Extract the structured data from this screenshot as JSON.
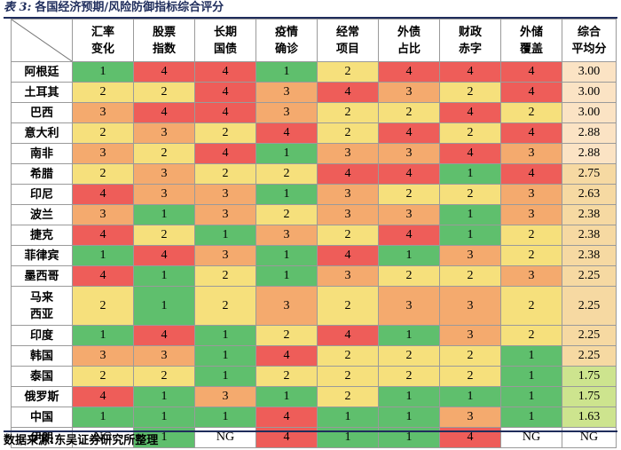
{
  "title": {
    "lead": "表 3:",
    "text": "各国经济预期/风险防御指标综合评分"
  },
  "headers": [
    [
      "汇率",
      "变化"
    ],
    [
      "股票",
      "指数"
    ],
    [
      "长期",
      "国债"
    ],
    [
      "疫情",
      "确诊"
    ],
    [
      "经常",
      "项目"
    ],
    [
      "外债",
      "占比"
    ],
    [
      "财政",
      "赤字"
    ],
    [
      "外储",
      "覆盖"
    ],
    [
      "综合",
      "平均分"
    ]
  ],
  "rows": [
    {
      "country": [
        "阿根廷"
      ],
      "values": [
        "1",
        "4",
        "4",
        "1",
        "2",
        "4",
        "4",
        "4"
      ],
      "avg": "3.00"
    },
    {
      "country": [
        "土耳其"
      ],
      "values": [
        "2",
        "2",
        "4",
        "3",
        "4",
        "3",
        "2",
        "4"
      ],
      "avg": "3.00"
    },
    {
      "country": [
        "巴西"
      ],
      "values": [
        "3",
        "4",
        "4",
        "3",
        "2",
        "2",
        "4",
        "2"
      ],
      "avg": "3.00"
    },
    {
      "country": [
        "意大利"
      ],
      "values": [
        "2",
        "3",
        "2",
        "4",
        "2",
        "4",
        "2",
        "4"
      ],
      "avg": "2.88"
    },
    {
      "country": [
        "南非"
      ],
      "values": [
        "3",
        "2",
        "4",
        "1",
        "3",
        "3",
        "4",
        "3"
      ],
      "avg": "2.88"
    },
    {
      "country": [
        "希腊"
      ],
      "values": [
        "2",
        "3",
        "2",
        "2",
        "4",
        "4",
        "1",
        "4"
      ],
      "avg": "2.75"
    },
    {
      "country": [
        "印尼"
      ],
      "values": [
        "4",
        "3",
        "3",
        "1",
        "3",
        "2",
        "2",
        "3"
      ],
      "avg": "2.63"
    },
    {
      "country": [
        "波兰"
      ],
      "values": [
        "3",
        "1",
        "3",
        "2",
        "3",
        "3",
        "1",
        "3"
      ],
      "avg": "2.38"
    },
    {
      "country": [
        "捷克"
      ],
      "values": [
        "4",
        "2",
        "1",
        "3",
        "2",
        "4",
        "1",
        "2"
      ],
      "avg": "2.38"
    },
    {
      "country": [
        "菲律宾"
      ],
      "values": [
        "1",
        "4",
        "3",
        "1",
        "4",
        "1",
        "3",
        "2"
      ],
      "avg": "2.38"
    },
    {
      "country": [
        "墨西哥"
      ],
      "values": [
        "4",
        "1",
        "2",
        "1",
        "3",
        "2",
        "2",
        "3"
      ],
      "avg": "2.25"
    },
    {
      "country": [
        "马来",
        "西亚"
      ],
      "values": [
        "2",
        "1",
        "2",
        "3",
        "2",
        "3",
        "3",
        "2"
      ],
      "avg": "2.25"
    },
    {
      "country": [
        "印度"
      ],
      "values": [
        "1",
        "4",
        "1",
        "2",
        "4",
        "1",
        "3",
        "2"
      ],
      "avg": "2.25"
    },
    {
      "country": [
        "韩国"
      ],
      "values": [
        "3",
        "3",
        "1",
        "4",
        "2",
        "2",
        "2",
        "1"
      ],
      "avg": "2.25"
    },
    {
      "country": [
        "泰国"
      ],
      "values": [
        "2",
        "2",
        "1",
        "2",
        "2",
        "2",
        "2",
        "1"
      ],
      "avg": "1.75"
    },
    {
      "country": [
        "俄罗斯"
      ],
      "values": [
        "4",
        "1",
        "3",
        "1",
        "2",
        "1",
        "1",
        "1"
      ],
      "avg": "1.75"
    },
    {
      "country": [
        "中国"
      ],
      "values": [
        "1",
        "1",
        "1",
        "4",
        "1",
        "1",
        "3",
        "1"
      ],
      "avg": "1.63"
    },
    {
      "country": [
        "伊朗"
      ],
      "values": [
        "NG",
        "1",
        "NG",
        "4",
        "1",
        "1",
        "4",
        "NG"
      ],
      "avg": "NG"
    }
  ],
  "footer": "数据来源:东吴证券研究所整理",
  "colors": {
    "score_1": "#5fbf6d",
    "score_2": "#f6e07c",
    "score_3": "#f4aa6e",
    "score_4": "#ee5d59",
    "avg_high": "#fbe3c4",
    "avg_mid": "#f6d9a2",
    "avg_low": "#cde48e",
    "title": "#1f2d5c"
  }
}
